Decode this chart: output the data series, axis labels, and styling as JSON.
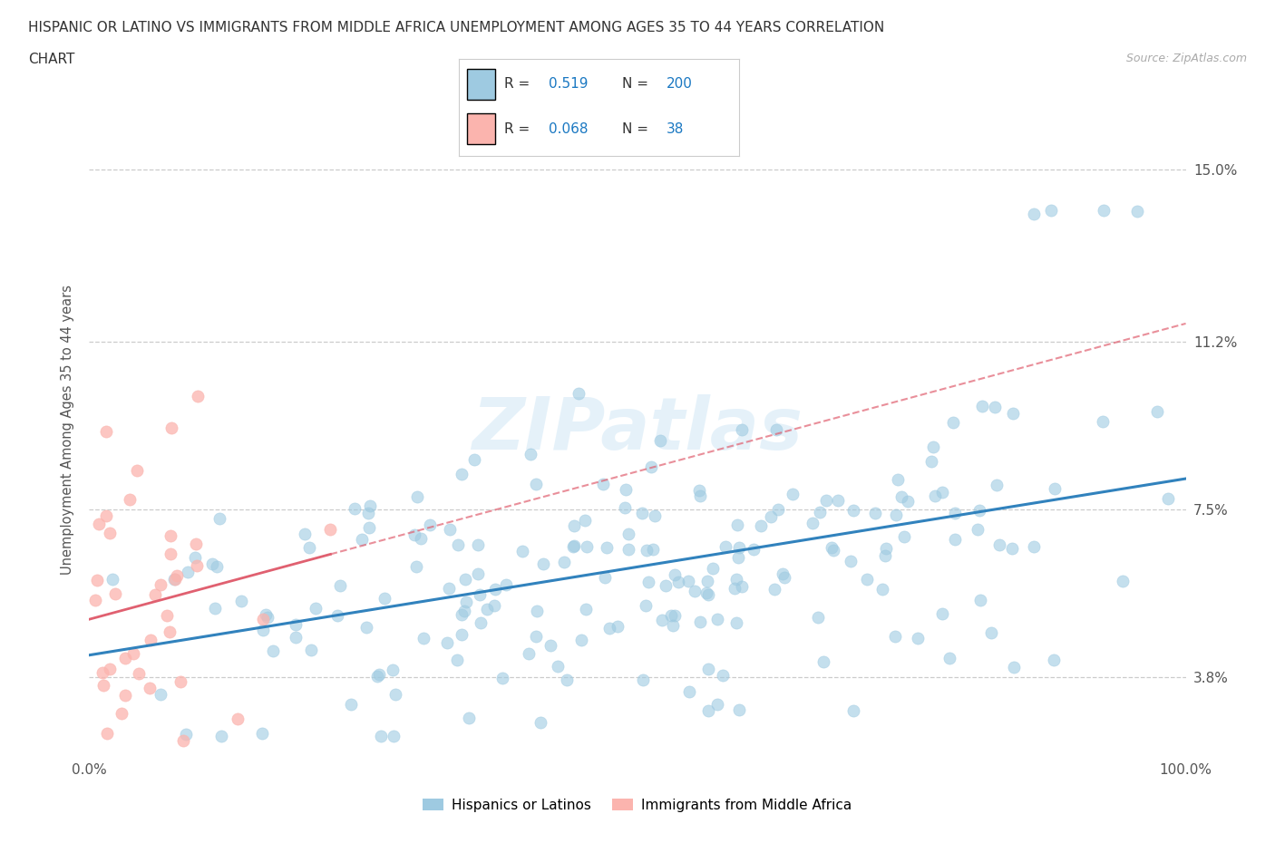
{
  "title_line1": "HISPANIC OR LATINO VS IMMIGRANTS FROM MIDDLE AFRICA UNEMPLOYMENT AMONG AGES 35 TO 44 YEARS CORRELATION",
  "title_line2": "CHART",
  "source_text": "Source: ZipAtlas.com",
  "ylabel": "Unemployment Among Ages 35 to 44 years",
  "xlim": [
    0,
    100
  ],
  "ylim": [
    2.0,
    16.5
  ],
  "yticks": [
    3.8,
    7.5,
    11.2,
    15.0
  ],
  "xticks": [
    0,
    10,
    20,
    30,
    40,
    50,
    60,
    70,
    80,
    90,
    100
  ],
  "xtick_labels": [
    "0.0%",
    "",
    "",
    "",
    "",
    "",
    "",
    "",
    "",
    "",
    "100.0%"
  ],
  "ytick_labels": [
    "3.8%",
    "7.5%",
    "11.2%",
    "15.0%"
  ],
  "blue_color": "#9ecae1",
  "pink_color": "#fbb4ae",
  "blue_line_color": "#3182bd",
  "pink_solid_color": "#e06070",
  "pink_dash_color": "#e06070",
  "legend_label1": "Hispanics or Latinos",
  "legend_label2": "Immigrants from Middle Africa",
  "watermark": "ZIPatlas",
  "blue_N": 200,
  "pink_N": 38,
  "background_color": "#ffffff",
  "grid_color": "#cccccc",
  "text_color": "#555555",
  "legend_num_color": "#1a78c2",
  "seed": 7
}
